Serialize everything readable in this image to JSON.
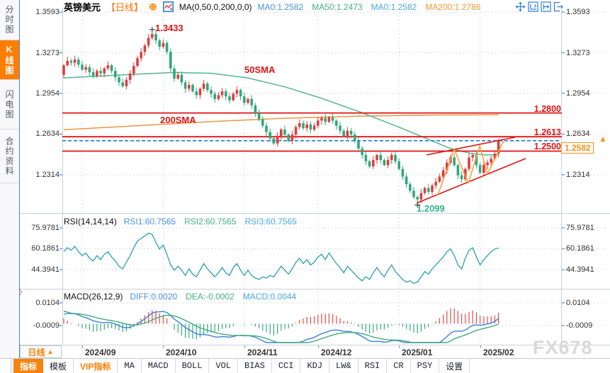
{
  "window": {
    "watermark": "FX678"
  },
  "sidebar": {
    "items": [
      {
        "name": "time-share-chart",
        "label": "分时图",
        "active": false
      },
      {
        "name": "kline-chart",
        "label": "K线图",
        "active": true
      },
      {
        "name": "flash-chart",
        "label": "闪电图",
        "active": false
      },
      {
        "name": "contract-info",
        "label": "合约资料",
        "active": false
      }
    ]
  },
  "header": {
    "symbol": "英镑美元",
    "period_tag": "【日线】",
    "add_icon": "⊕",
    "ma_formula": "MA(0,50,0,200,0,0)",
    "ma_values": [
      {
        "label": "MA0:1.2582",
        "color": "#4a90e2"
      },
      {
        "label": "MA50:1.2473",
        "color": "#43b083"
      },
      {
        "label": "MA0:1.2582",
        "color": "#4aa9e8"
      },
      {
        "label": "MA200:1.2786",
        "color": "#f5972e"
      }
    ],
    "tool_icons": [
      "crosshair-move-icon",
      "axis-scale-icon",
      "axis-pan-icon",
      "export-icon"
    ]
  },
  "main_chart": {
    "y_axis_labels": [
      "1.3593",
      "1.3273",
      "1.2954",
      "1.2634",
      "1.2314"
    ],
    "levels": [
      {
        "label": "1.2800"
      },
      {
        "label": "1.2613"
      },
      {
        "label": "1.2500"
      }
    ],
    "current_price": {
      "label": "1.2582",
      "arrow": "▲"
    },
    "annotations": {
      "peak": "1.3433",
      "trough": "1.2099"
    },
    "ma_labels": {
      "sma50": "50SMA",
      "sma200": "200SMA"
    }
  },
  "rsi_panel": {
    "title": "RSI(14,14,14)",
    "values": [
      {
        "label": "RSI1:60.7565",
        "color": "#4a90e2"
      },
      {
        "label": "RSI2:60.7565",
        "color": "#43b083"
      },
      {
        "label": "RSI3:60.7565",
        "color": "#47a7e0"
      }
    ],
    "axis_labels": [
      "75.9781",
      "60.1861",
      "44.3941"
    ]
  },
  "macd_panel": {
    "title": "MACD(26,12,9)",
    "values": [
      {
        "label": "DIFF:0.0020",
        "color": "#4a90e2"
      },
      {
        "label": "DEA:-0.0002",
        "color": "#43b083"
      },
      {
        "label": "MACD:0.0044",
        "color": "#47a7e0"
      }
    ],
    "axis_labels": [
      "0.0104",
      "-0.0009"
    ]
  },
  "x_axis": {
    "period_label": "日线",
    "period_arrow": "▲",
    "labels": [
      "2024/09",
      "2024/10",
      "2024/11",
      "2024/12",
      "2025/01",
      "2025/02"
    ]
  },
  "toolbar": {
    "tabs": [
      {
        "name": "indicators",
        "label": "指标",
        "active": true
      },
      {
        "name": "templates",
        "label": "模板"
      },
      {
        "name": "vip-indicators",
        "label": "VIP指标",
        "accent": true
      },
      {
        "name": "ma",
        "label": "MA"
      },
      {
        "name": "macd",
        "label": "MACD"
      },
      {
        "name": "boll",
        "label": "BOLL"
      },
      {
        "name": "vol",
        "label": "VOL"
      },
      {
        "name": "bias",
        "label": "BIAS"
      },
      {
        "name": "cci",
        "label": "CCI"
      },
      {
        "name": "kdj",
        "label": "KDJ"
      },
      {
        "name": "lw",
        "label": "LW&"
      },
      {
        "name": "rsi",
        "label": "RSI"
      },
      {
        "name": "cr",
        "label": "CR"
      },
      {
        "name": "psy",
        "label": "PSY"
      },
      {
        "name": "settings",
        "label": "设置"
      }
    ]
  },
  "chart_data": {
    "type": "candlestick",
    "symbol": "英镑美元 GBP/USD",
    "period": "daily",
    "x_labels": [
      "2024/09",
      "2024/10",
      "2024/11",
      "2024/12",
      "2025/01",
      "2025/02"
    ],
    "month_tick_indices": [
      5,
      27,
      49,
      69,
      91,
      113
    ],
    "price_axis_ticks": [
      1.3593,
      1.3273,
      1.2954,
      1.2634,
      1.2314
    ],
    "open_first": 1.31,
    "closes": [
      1.3175,
      1.321,
      1.3195,
      1.322,
      1.318,
      1.314,
      1.316,
      1.312,
      1.309,
      1.313,
      1.311,
      1.315,
      1.3175,
      1.313,
      1.308,
      1.304,
      1.301,
      1.306,
      1.311,
      1.317,
      1.323,
      1.328,
      1.333,
      1.339,
      1.342,
      1.337,
      1.332,
      1.335,
      1.328,
      1.315,
      1.307,
      1.31,
      1.304,
      1.299,
      1.302,
      1.297,
      1.294,
      1.299,
      1.303,
      1.298,
      1.295,
      1.291,
      1.294,
      1.297,
      1.293,
      1.29,
      1.295,
      1.298,
      1.293,
      1.288,
      1.291,
      1.286,
      1.28,
      1.275,
      1.27,
      1.265,
      1.26,
      1.256,
      1.262,
      1.267,
      1.263,
      1.258,
      1.263,
      1.269,
      1.272,
      1.268,
      1.271,
      1.267,
      1.27,
      1.274,
      1.276,
      1.273,
      1.2765,
      1.274,
      1.27,
      1.266,
      1.262,
      1.266,
      1.263,
      1.258,
      1.252,
      1.247,
      1.242,
      1.238,
      1.243,
      1.247,
      1.243,
      1.239,
      1.243,
      1.247,
      1.242,
      1.236,
      1.23,
      1.224,
      1.219,
      1.214,
      1.212,
      1.217,
      1.221,
      1.218,
      1.223,
      1.226,
      1.23,
      1.235,
      1.241,
      1.245,
      1.239,
      1.231,
      1.228,
      1.236,
      1.245,
      1.247,
      1.239,
      1.233,
      1.239,
      1.241,
      1.244,
      1.248,
      1.2582
    ],
    "special_points": {
      "high": {
        "index": 24,
        "price": 1.3433
      },
      "low": {
        "index": 96,
        "price": 1.2099
      }
    },
    "levels": [
      1.28,
      1.2613,
      1.25
    ],
    "current_price": 1.2582,
    "ma50_points": [
      [
        0,
        1.3075
      ],
      [
        10,
        1.309
      ],
      [
        20,
        1.3105
      ],
      [
        30,
        1.3118
      ],
      [
        40,
        1.3112
      ],
      [
        50,
        1.3075
      ],
      [
        60,
        1.3005
      ],
      [
        70,
        1.2915
      ],
      [
        80,
        1.2812
      ],
      [
        90,
        1.27
      ],
      [
        100,
        1.258
      ],
      [
        105,
        1.252
      ],
      [
        110,
        1.2485
      ],
      [
        114,
        1.247
      ],
      [
        118,
        1.2473
      ]
    ],
    "ma200_points": [
      [
        0,
        1.2668
      ],
      [
        20,
        1.27
      ],
      [
        40,
        1.2732
      ],
      [
        60,
        1.2758
      ],
      [
        80,
        1.2775
      ],
      [
        100,
        1.2783
      ],
      [
        118,
        1.2786
      ]
    ],
    "trendlines": [
      [
        95.8,
        1.2092,
        125.4,
        1.2442
      ],
      [
        98.5,
        1.247,
        122.5,
        1.2609
      ]
    ],
    "zigzag": [
      [
        101.5,
        1.2153
      ],
      [
        106,
        1.2514
      ],
      [
        109.8,
        1.2247
      ],
      [
        112.9,
        1.2542
      ],
      [
        115,
        1.232
      ],
      [
        119.4,
        1.2581
      ]
    ],
    "rsi_values": [
      58,
      61,
      59,
      62,
      58,
      55,
      57,
      53,
      51,
      55,
      52,
      56,
      58,
      54,
      51,
      47,
      45,
      50,
      55,
      61,
      66,
      68,
      70,
      72,
      71,
      65,
      60,
      63,
      56,
      48,
      44,
      47,
      44,
      40,
      45,
      41,
      39,
      44,
      49,
      45,
      42,
      39,
      42,
      46,
      42,
      40,
      46,
      49,
      44,
      40,
      44,
      40,
      38,
      37,
      39,
      38,
      40,
      39,
      43,
      47,
      44,
      41,
      45,
      50,
      53,
      49,
      52,
      48,
      50,
      54,
      56,
      52,
      57,
      53,
      49,
      46,
      42,
      47,
      44,
      41,
      38,
      36,
      39,
      37,
      42,
      46,
      42,
      39,
      44,
      48,
      43,
      40,
      37,
      35,
      36,
      34,
      35,
      39,
      43,
      41,
      45,
      48,
      51,
      54,
      58,
      60,
      55,
      48,
      45,
      53,
      59,
      61,
      54,
      48,
      52,
      55,
      58,
      60,
      60.76
    ],
    "rsi_axis_ticks": [
      75.9781,
      60.1861,
      44.3941
    ],
    "macd_axis_ticks": [
      0.0104,
      -0.0009
    ],
    "macd_display": {
      "diff": 0.002,
      "dea": -0.0002,
      "macd": 0.0044
    },
    "colors": {
      "up": "#e13c3c",
      "down": "#2fa77c",
      "ma50": "#52b78d",
      "ma200": "#ef9440",
      "level": "#e11212",
      "current_line": "#1f7ad4",
      "rsi_line": "#2aa0ad",
      "macd_diff": "#3b82d8",
      "macd_dea": "#43a97e",
      "hist_up": "#e14b4b",
      "hist_down": "#35a97e",
      "annotation_high": "#e11212",
      "annotation_low": "#35b08a"
    }
  }
}
